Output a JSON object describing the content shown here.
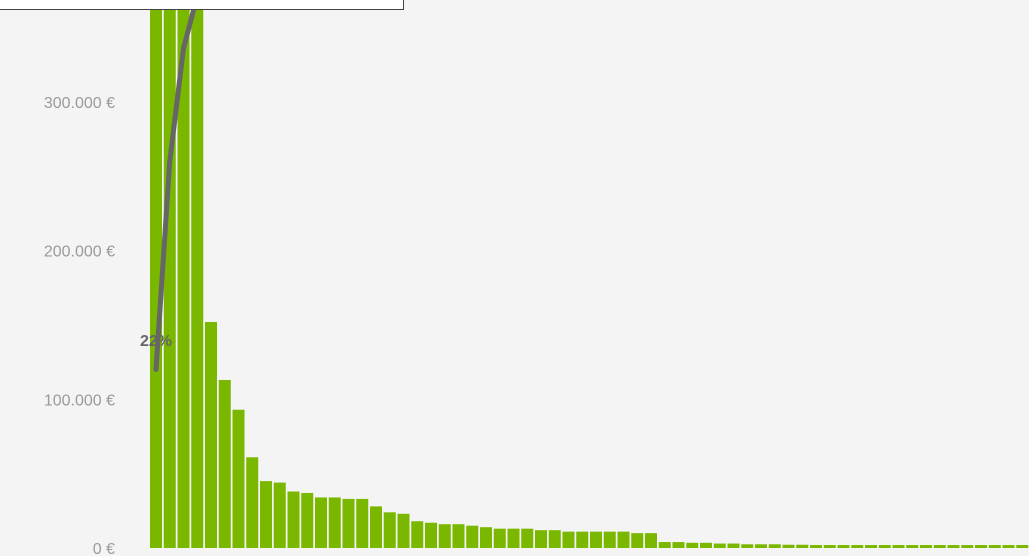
{
  "chart_data": {
    "type": "bar",
    "title": "",
    "xlabel": "",
    "ylabel": "",
    "ylim": [
      0,
      356000
    ],
    "y_ticks": [
      {
        "value": 0,
        "label": "0 €"
      },
      {
        "value": 100000,
        "label": "100.000 €"
      },
      {
        "value": 200000,
        "label": "200.000 €"
      },
      {
        "value": 300000,
        "label": "300.000 €"
      }
    ],
    "grid": false,
    "series": [
      {
        "values": [
          356000,
          356000,
          356000,
          356000,
          152000,
          113000,
          93000,
          61000,
          45000,
          44000,
          38000,
          37000,
          34000,
          34000,
          33000,
          33000,
          28000,
          24000,
          23000,
          18000,
          17000,
          16000,
          16000,
          15000,
          14000,
          13000,
          13000,
          13000,
          12000,
          12000,
          11000,
          11000,
          11000,
          11000,
          11000,
          10000,
          10000,
          4000,
          4000,
          3500,
          3500,
          3000,
          3000,
          2500,
          2500,
          2500,
          2200,
          2200,
          2000,
          2000,
          2000,
          2000,
          2000,
          2000,
          2000,
          2000,
          2000,
          2000,
          2000,
          2000,
          2000,
          2000,
          2000,
          2000,
          2000,
          2000,
          2000,
          2000,
          2000,
          2000,
          2000,
          2000,
          2000,
          2000,
          2000,
          2000,
          2000
        ],
        "color": "#7ab800"
      },
      {
        "type": "line",
        "values": [
          120000,
          260000,
          336000,
          356000
        ],
        "color": "#666666"
      }
    ],
    "annotations": [
      {
        "text": "22%",
        "x_index": 0,
        "y": 140000
      }
    ],
    "bars_clipped_at_top": true
  },
  "colors": {
    "background": "#f4f4f4",
    "bar": "#7ab800",
    "line": "#666666",
    "tick_text": "#9a9a9a"
  }
}
